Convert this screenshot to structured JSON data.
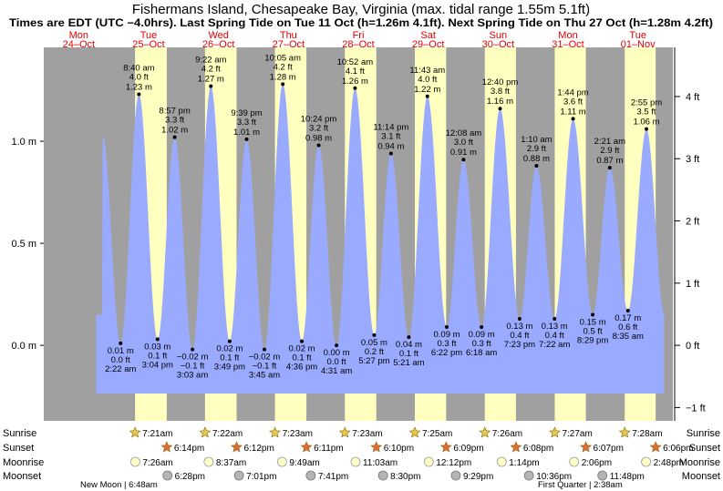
{
  "chart_data": {
    "type": "area",
    "title": "Fishermans Island, Chesapeake Bay, Virginia (max. tidal range 1.55m 5.1ft)",
    "subtitle": "Times are EDT (UTC −4.0hrs). Last Spring Tide on Tue 11 Oct (h=1.26m 4.1ft). Next Spring Tide on Thu 27 Oct (h=1.28m 4.2ft)",
    "ylabel_left_ticks": [
      "1.0 m",
      "0.5 m",
      "0.0 m"
    ],
    "ylabel_right_ticks": [
      "4 ft",
      "3 ft",
      "2 ft",
      "1 ft",
      "0 ft",
      "−1 ft"
    ],
    "ylim_m": [
      -0.37,
      1.46
    ],
    "days": [
      {
        "dow": "Mon",
        "date": "24–Oct"
      },
      {
        "dow": "Tue",
        "date": "25–Oct"
      },
      {
        "dow": "Wed",
        "date": "26–Oct"
      },
      {
        "dow": "Thu",
        "date": "27–Oct"
      },
      {
        "dow": "Fri",
        "date": "28–Oct"
      },
      {
        "dow": "Sat",
        "date": "29–Oct"
      },
      {
        "dow": "Sun",
        "date": "30–Oct"
      },
      {
        "dow": "Mon",
        "date": "31–Oct"
      },
      {
        "dow": "Tue",
        "date": "01–Nov"
      }
    ],
    "tides": [
      {
        "type": "low",
        "t": 26.37,
        "time": "2:22 am",
        "ft": "0.0 ft",
        "m": 0.01,
        "m_label": "0.01 m"
      },
      {
        "type": "high",
        "t": 32.67,
        "time": "8:40 am",
        "ft": "4.0 ft",
        "m": 1.23,
        "m_label": "1.23 m"
      },
      {
        "type": "low",
        "t": 39.07,
        "time": "3:04 pm",
        "ft": "0.1 ft",
        "m": 0.03,
        "m_label": "0.03 m"
      },
      {
        "type": "high",
        "t": 44.95,
        "time": "8:57 pm",
        "ft": "3.3 ft",
        "m": 1.02,
        "m_label": "1.02 m"
      },
      {
        "type": "low",
        "t": 51.05,
        "time": "3:03 am",
        "ft": "−0.1 ft",
        "m": -0.02,
        "m_label": "−0.02 m"
      },
      {
        "type": "high",
        "t": 57.37,
        "time": "9:22 am",
        "ft": "4.2 ft",
        "m": 1.27,
        "m_label": "1.27 m"
      },
      {
        "type": "low",
        "t": 63.82,
        "time": "3:49 pm",
        "ft": "0.1 ft",
        "m": 0.02,
        "m_label": "0.02 m"
      },
      {
        "type": "high",
        "t": 69.65,
        "time": "9:39 pm",
        "ft": "3.3 ft",
        "m": 1.01,
        "m_label": "1.01 m"
      },
      {
        "type": "low",
        "t": 75.75,
        "time": "3:45 am",
        "ft": "−0.1 ft",
        "m": -0.02,
        "m_label": "−0.02 m"
      },
      {
        "type": "high",
        "t": 82.08,
        "time": "10:05 am",
        "ft": "4.2 ft",
        "m": 1.28,
        "m_label": "1.28 m"
      },
      {
        "type": "low",
        "t": 88.6,
        "time": "4:36 pm",
        "ft": "0.1 ft",
        "m": 0.02,
        "m_label": "0.02 m"
      },
      {
        "type": "high",
        "t": 94.4,
        "time": "10:24 pm",
        "ft": "3.2 ft",
        "m": 0.98,
        "m_label": "0.98 m"
      },
      {
        "type": "low",
        "t": 100.52,
        "time": "4:31 am",
        "ft": "0.0 ft",
        "m": 0.0,
        "m_label": "0.00 m"
      },
      {
        "type": "high",
        "t": 106.87,
        "time": "10:52 am",
        "ft": "4.1 ft",
        "m": 1.26,
        "m_label": "1.26 m"
      },
      {
        "type": "low",
        "t": 113.45,
        "time": "5:27 pm",
        "ft": "0.2 ft",
        "m": 0.05,
        "m_label": "0.05 m"
      },
      {
        "type": "high",
        "t": 119.23,
        "time": "11:14 pm",
        "ft": "3.1 ft",
        "m": 0.94,
        "m_label": "0.94 m"
      },
      {
        "type": "low",
        "t": 125.35,
        "time": "5:21 am",
        "ft": "0.1 ft",
        "m": 0.04,
        "m_label": "0.04 m"
      },
      {
        "type": "high",
        "t": 131.72,
        "time": "11:43 am",
        "ft": "4.0 ft",
        "m": 1.22,
        "m_label": "1.22 m"
      },
      {
        "type": "low",
        "t": 138.37,
        "time": "6:22 pm",
        "ft": "0.3 ft",
        "m": 0.09,
        "m_label": "0.09 m"
      },
      {
        "type": "high",
        "t": 144.13,
        "time": "12:08 am",
        "ft": "3.0 ft",
        "m": 0.91,
        "m_label": "0.91 m"
      },
      {
        "type": "low",
        "t": 150.3,
        "time": "6:18 am",
        "ft": "0.3 ft",
        "m": 0.09,
        "m_label": "0.09 m"
      },
      {
        "type": "high",
        "t": 156.67,
        "time": "12:40 pm",
        "ft": "3.8 ft",
        "m": 1.16,
        "m_label": "1.16 m"
      },
      {
        "type": "low",
        "t": 163.38,
        "time": "7:23 pm",
        "ft": "0.4 ft",
        "m": 0.13,
        "m_label": "0.13 m"
      },
      {
        "type": "high",
        "t": 169.17,
        "time": "1:10 am",
        "ft": "2.9 ft",
        "m": 0.88,
        "m_label": "0.88 m"
      },
      {
        "type": "low",
        "t": 175.37,
        "time": "7:22 am",
        "ft": "0.4 ft",
        "m": 0.13,
        "m_label": "0.13 m"
      },
      {
        "type": "high",
        "t": 181.73,
        "time": "1:44 pm",
        "ft": "3.6 ft",
        "m": 1.11,
        "m_label": "1.11 m"
      },
      {
        "type": "low",
        "t": 188.48,
        "time": "8:29 pm",
        "ft": "0.5 ft",
        "m": 0.15,
        "m_label": "0.15 m"
      },
      {
        "type": "high",
        "t": 194.35,
        "time": "2:21 am",
        "ft": "2.9 ft",
        "m": 0.87,
        "m_label": "0.87 m"
      },
      {
        "type": "low",
        "t": 200.58,
        "time": "8:35 am",
        "ft": "0.6 ft",
        "m": 0.17,
        "m_label": "0.17 m"
      },
      {
        "type": "high",
        "t": 206.92,
        "time": "2:55 pm",
        "ft": "3.5 ft",
        "m": 1.06,
        "m_label": "1.06 m"
      }
    ],
    "row_labels": [
      "Sunrise",
      "Sunset",
      "Moonrise",
      "Moonset"
    ],
    "sunrise": [
      {
        "t": 31.35,
        "time": "7:21am"
      },
      {
        "t": 55.37,
        "time": "7:22am"
      },
      {
        "t": 79.38,
        "time": "7:23am"
      },
      {
        "t": 103.38,
        "time": "7:23am"
      },
      {
        "t": 127.42,
        "time": "7:25am"
      },
      {
        "t": 151.43,
        "time": "7:26am"
      },
      {
        "t": 175.45,
        "time": "7:27am"
      },
      {
        "t": 199.47,
        "time": "7:28am"
      }
    ],
    "sunset": [
      {
        "t": 42.23,
        "time": "6:14pm"
      },
      {
        "t": 66.2,
        "time": "6:12pm"
      },
      {
        "t": 90.18,
        "time": "6:11pm"
      },
      {
        "t": 114.17,
        "time": "6:10pm"
      },
      {
        "t": 138.15,
        "time": "6:09pm"
      },
      {
        "t": 162.13,
        "time": "6:08pm"
      },
      {
        "t": 186.12,
        "time": "6:07pm"
      },
      {
        "t": 210.1,
        "time": "6:06pm"
      }
    ],
    "moonrise": [
      {
        "t": 31.43,
        "time": "7:26am"
      },
      {
        "t": 56.62,
        "time": "8:37am"
      },
      {
        "t": 81.82,
        "time": "9:49am"
      },
      {
        "t": 107.05,
        "time": "11:03am"
      },
      {
        "t": 132.2,
        "time": "12:12pm"
      },
      {
        "t": 157.23,
        "time": "1:14pm"
      },
      {
        "t": 182.1,
        "time": "2:06pm"
      },
      {
        "t": 206.8,
        "time": "2:48pm"
      }
    ],
    "moonset": [
      {
        "t": 42.47,
        "time": "6:28pm"
      },
      {
        "t": 67.02,
        "time": "7:01pm"
      },
      {
        "t": 91.68,
        "time": "7:41pm"
      },
      {
        "t": 116.5,
        "time": "8:30pm"
      },
      {
        "t": 141.48,
        "time": "9:29pm"
      },
      {
        "t": 166.6,
        "time": "10:36pm"
      },
      {
        "t": 191.8,
        "time": "11:48pm"
      }
    ],
    "moon_phases": [
      {
        "label": "New Moon | 6:48am"
      },
      {
        "label": "First Quarter | 2:38am"
      }
    ],
    "colors": {
      "night": "#a0a0a0",
      "day": "#ffffc0",
      "water": "#9aabff",
      "day_label": "#e00000",
      "sun_star": "#e6c84a",
      "sunset_star": "#e36b33",
      "moonrise": "#ffffc8",
      "moonset": "#b4b4b4"
    }
  }
}
